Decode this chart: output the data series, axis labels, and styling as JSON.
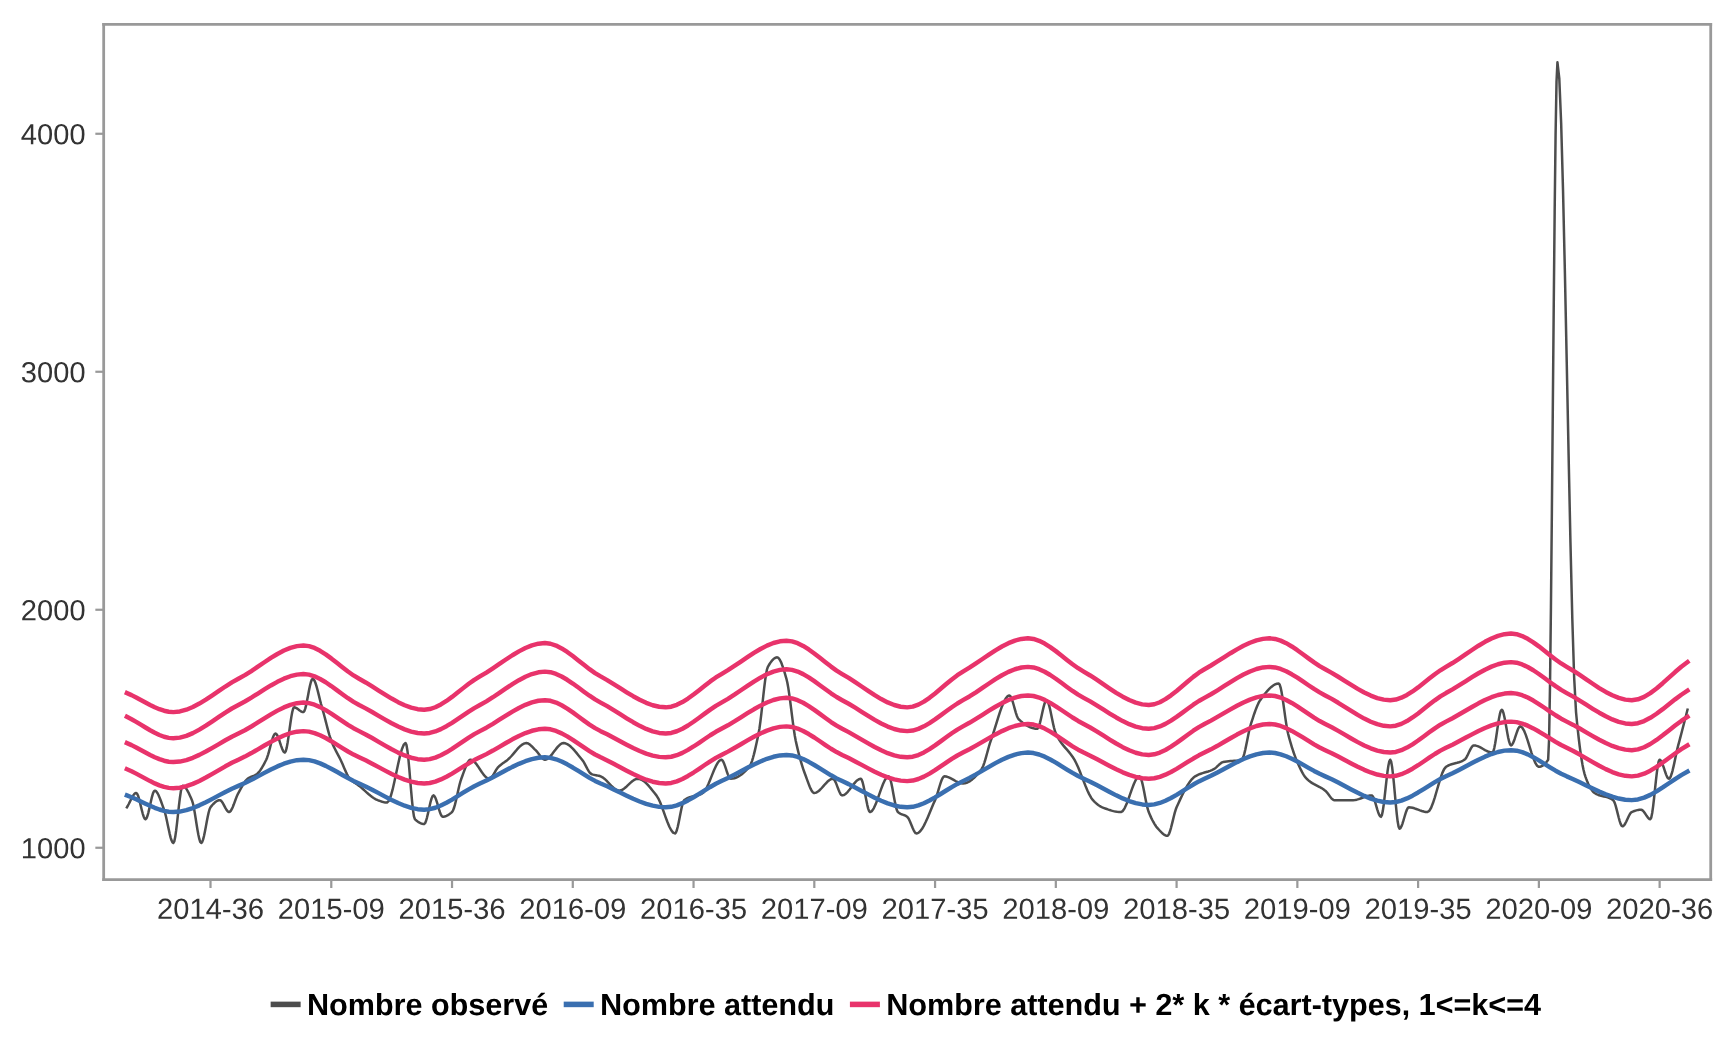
{
  "chart_data": {
    "type": "line",
    "categories": [
      null,
      null,
      null,
      null,
      null,
      null,
      null,
      null,
      null,
      null,
      "2014-36",
      null,
      null,
      null,
      null,
      null,
      null,
      null,
      null,
      null,
      null,
      null,
      null,
      "2015-09",
      null,
      null,
      null,
      null,
      null,
      null,
      null,
      null,
      null,
      null,
      null,
      null,
      "2015-36",
      null,
      null,
      null,
      null,
      null,
      null,
      null,
      null,
      null,
      null,
      null,
      null,
      "2016-09",
      null,
      null,
      null,
      null,
      null,
      null,
      null,
      null,
      null,
      null,
      null,
      null,
      "2016-35",
      null,
      null,
      null,
      null,
      null,
      null,
      null,
      null,
      null,
      null,
      null,
      null,
      "2017-09",
      null,
      null,
      null,
      null,
      null,
      null,
      null,
      null,
      null,
      null,
      null,
      null,
      "2017-35",
      null,
      null,
      null,
      null,
      null,
      null,
      null,
      null,
      null,
      null,
      null,
      null,
      "2018-09",
      null,
      null,
      null,
      null,
      null,
      null,
      null,
      null,
      null,
      null,
      null,
      null,
      "2018-35",
      null,
      null,
      null,
      null,
      null,
      null,
      null,
      null,
      null,
      null,
      null,
      null,
      "2019-09",
      null,
      null,
      null,
      null,
      null,
      null,
      null,
      null,
      null,
      null,
      null,
      null,
      "2019-35",
      null,
      null,
      null,
      null,
      null,
      null,
      null,
      null,
      null,
      null,
      null,
      null,
      "2020-09",
      null,
      null,
      null,
      null,
      null,
      null,
      null,
      null,
      null,
      null,
      null,
      null,
      "2020-36",
      null,
      null,
      null
    ],
    "ylim": [
      866,
      4460
    ],
    "yticks": [
      1000,
      2000,
      3000,
      4000
    ],
    "grid": false,
    "legend": "bottom",
    "series": [
      {
        "name": "Nombre observé",
        "color": "#4d4d4d",
        "values": [
          null,
          1170,
          1230,
          1120,
          1240,
          1160,
          1020,
          1260,
          1200,
          1020,
          1170,
          1200,
          1150,
          1230,
          1290,
          1310,
          1370,
          1480,
          1400,
          1590,
          1570,
          1710,
          1590,
          1450,
          1370,
          1290,
          1260,
          null,
          1200,
          1190,
          null,
          1440,
          1120,
          1100,
          1220,
          1130,
          1150,
          1290,
          1370,
          null,
          1290,
          1340,
          1370,
          null,
          1440,
          1410,
          1370,
          null,
          1440,
          null,
          1370,
          1310,
          1300,
          null,
          1240,
          null,
          1290,
          null,
          1220,
          null,
          1060,
          1200,
          null,
          1230,
          null,
          1370,
          1290,
          null,
          1340,
          1480,
          1760,
          1800,
          1710,
          1450,
          1310,
          1230,
          null,
          1290,
          1220,
          null,
          1290,
          1150,
          null,
          1300,
          1150,
          1130,
          1060,
          null,
          1200,
          1300,
          null,
          1270,
          null,
          1330,
          1450,
          null,
          1640,
          1540,
          null,
          1500,
          1620,
          1480,
          null,
          1370,
          null,
          1200,
          1170,
          null,
          1150,
          null,
          1300,
          1150,
          1080,
          1050,
          1170,
          null,
          1300,
          null,
          1330,
          1360,
          null,
          1370,
          1520,
          1620,
          null,
          1690,
          1480,
          1360,
          1290,
          null,
          1240,
          1200,
          null,
          1200,
          null,
          1220,
          1130,
          1370,
          1080,
          1170,
          null,
          1150,
          null,
          1340,
          null,
          1370,
          1430,
          null,
          1400,
          1580,
          1430,
          1510,
          null,
          1340,
          1370,
          4300,
          null,
          1570,
          1300,
          1230,
          null,
          1200,
          1090,
          1150,
          1160,
          1120,
          1370,
          1290,
          1430,
          1580
        ]
      },
      {
        "name": "Nombre attendu",
        "color": "#3a6fb0",
        "values": [
          null,
          1220,
          null,
          null,
          null,
          null,
          1150,
          null,
          null,
          null,
          null,
          null,
          null,
          1260,
          null,
          null,
          null,
          null,
          null,
          null,
          1370,
          null,
          null,
          null,
          null,
          null,
          1270,
          null,
          null,
          null,
          null,
          null,
          null,
          1160,
          null,
          null,
          null,
          null,
          null,
          1270,
          null,
          null,
          null,
          null,
          null,
          null,
          1380,
          null,
          null,
          null,
          null,
          null,
          1270,
          null,
          null,
          null,
          null,
          null,
          null,
          1170,
          null,
          null,
          null,
          null,
          null,
          1280,
          null,
          null,
          null,
          null,
          null,
          null,
          1390,
          null,
          null,
          null,
          null,
          null,
          1280,
          null,
          null,
          null,
          null,
          null,
          null,
          1170,
          null,
          null,
          null,
          null,
          null,
          1280,
          null,
          null,
          null,
          null,
          null,
          null,
          1400,
          null,
          null,
          null,
          null,
          null,
          1290,
          null,
          null,
          null,
          null,
          null,
          null,
          1180,
          null,
          null,
          null,
          null,
          null,
          1290,
          null,
          null,
          null,
          null,
          null,
          null,
          1400,
          null,
          null,
          null,
          null,
          null,
          1300,
          null,
          null,
          null,
          null,
          null,
          null,
          1190,
          null,
          null,
          null,
          null,
          null,
          1300,
          null,
          null,
          null,
          null,
          null,
          null,
          1410,
          null,
          null,
          null,
          null,
          null,
          1300,
          null,
          null,
          null,
          null,
          null,
          null,
          1200,
          null,
          null,
          null,
          null,
          null,
          1320
        ]
      },
      {
        "name": "Nombre attendu + 2* k * écart-types, 1<=k<=4",
        "color": "#e8336b",
        "values": [
          null,
          1330,
          null,
          null,
          null,
          null,
          1250,
          null,
          null,
          null,
          null,
          null,
          null,
          1370,
          null,
          null,
          null,
          null,
          null,
          null,
          1490,
          null,
          null,
          null,
          null,
          null,
          1380,
          null,
          null,
          null,
          null,
          null,
          null,
          1270,
          null,
          null,
          null,
          null,
          null,
          1380,
          null,
          null,
          null,
          null,
          null,
          null,
          1500,
          null,
          null,
          null,
          null,
          null,
          1380,
          null,
          null,
          null,
          null,
          null,
          null,
          1270,
          null,
          null,
          null,
          null,
          null,
          1390,
          null,
          null,
          null,
          null,
          null,
          null,
          1510,
          null,
          null,
          null,
          null,
          null,
          1390,
          null,
          null,
          null,
          null,
          null,
          null,
          1280,
          null,
          null,
          null,
          null,
          null,
          1400,
          null,
          null,
          null,
          null,
          null,
          null,
          1520,
          null,
          null,
          null,
          null,
          null,
          1400,
          null,
          null,
          null,
          null,
          null,
          null,
          1290,
          null,
          null,
          null,
          null,
          null,
          1400,
          null,
          null,
          null,
          null,
          null,
          null,
          1520,
          null,
          null,
          null,
          null,
          null,
          1410,
          null,
          null,
          null,
          null,
          null,
          null,
          1300,
          null,
          null,
          null,
          null,
          null,
          1420,
          null,
          null,
          null,
          null,
          null,
          null,
          1530,
          null,
          null,
          null,
          null,
          null,
          1420,
          null,
          null,
          null,
          null,
          null,
          null,
          1300,
          null,
          null,
          null,
          null,
          null,
          1430
        ]
      },
      {
        "color": "#e8336b",
        "values": [
          null,
          1440,
          null,
          null,
          null,
          null,
          1360,
          null,
          null,
          null,
          null,
          null,
          null,
          1480,
          null,
          null,
          null,
          null,
          null,
          null,
          1610,
          null,
          null,
          null,
          null,
          null,
          1490,
          null,
          null,
          null,
          null,
          null,
          null,
          1370,
          null,
          null,
          null,
          null,
          null,
          1490,
          null,
          null,
          null,
          null,
          null,
          null,
          1620,
          null,
          null,
          null,
          null,
          null,
          1490,
          null,
          null,
          null,
          null,
          null,
          null,
          1380,
          null,
          null,
          null,
          null,
          null,
          1500,
          null,
          null,
          null,
          null,
          null,
          null,
          1630,
          null,
          null,
          null,
          null,
          null,
          1500,
          null,
          null,
          null,
          null,
          null,
          null,
          1380,
          null,
          null,
          null,
          null,
          null,
          1510,
          null,
          null,
          null,
          null,
          null,
          null,
          1640,
          null,
          null,
          null,
          null,
          null,
          1520,
          null,
          null,
          null,
          null,
          null,
          null,
          1390,
          null,
          null,
          null,
          null,
          null,
          1520,
          null,
          null,
          null,
          null,
          null,
          null,
          1640,
          null,
          null,
          null,
          null,
          null,
          1520,
          null,
          null,
          null,
          null,
          null,
          null,
          1400,
          null,
          null,
          null,
          null,
          null,
          1530,
          null,
          null,
          null,
          null,
          null,
          null,
          1650,
          null,
          null,
          null,
          null,
          null,
          1530,
          null,
          null,
          null,
          null,
          null,
          null,
          1410,
          null,
          null,
          null,
          null,
          null,
          1550
        ]
      },
      {
        "color": "#e8336b",
        "values": [
          null,
          1550,
          null,
          null,
          null,
          null,
          1460,
          null,
          null,
          null,
          null,
          null,
          null,
          1600,
          null,
          null,
          null,
          null,
          null,
          null,
          1730,
          null,
          null,
          null,
          null,
          null,
          1600,
          null,
          null,
          null,
          null,
          null,
          null,
          1480,
          null,
          null,
          null,
          null,
          null,
          1600,
          null,
          null,
          null,
          null,
          null,
          null,
          1740,
          null,
          null,
          null,
          null,
          null,
          1610,
          null,
          null,
          null,
          null,
          null,
          null,
          1480,
          null,
          null,
          null,
          null,
          null,
          1610,
          null,
          null,
          null,
          null,
          null,
          null,
          1750,
          null,
          null,
          null,
          null,
          null,
          1620,
          null,
          null,
          null,
          null,
          null,
          null,
          1490,
          null,
          null,
          null,
          null,
          null,
          1620,
          null,
          null,
          null,
          null,
          null,
          null,
          1760,
          null,
          null,
          null,
          null,
          null,
          1630,
          null,
          null,
          null,
          null,
          null,
          null,
          1500,
          null,
          null,
          null,
          null,
          null,
          1630,
          null,
          null,
          null,
          null,
          null,
          null,
          1760,
          null,
          null,
          null,
          null,
          null,
          1640,
          null,
          null,
          null,
          null,
          null,
          null,
          1510,
          null,
          null,
          null,
          null,
          null,
          1650,
          null,
          null,
          null,
          null,
          null,
          null,
          1780,
          null,
          null,
          null,
          null,
          null,
          1650,
          null,
          null,
          null,
          null,
          null,
          null,
          1520,
          null,
          null,
          null,
          null,
          null,
          1660
        ]
      },
      {
        "color": "#e8336b",
        "values": [
          null,
          1650,
          null,
          null,
          null,
          null,
          1570,
          null,
          null,
          null,
          null,
          null,
          null,
          1710,
          null,
          null,
          null,
          null,
          null,
          null,
          1850,
          null,
          null,
          null,
          null,
          null,
          1710,
          null,
          null,
          null,
          null,
          null,
          null,
          1580,
          null,
          null,
          null,
          null,
          null,
          1720,
          null,
          null,
          null,
          null,
          null,
          null,
          1860,
          null,
          null,
          null,
          null,
          null,
          1720,
          null,
          null,
          null,
          null,
          null,
          null,
          1590,
          null,
          null,
          null,
          null,
          null,
          1730,
          null,
          null,
          null,
          null,
          null,
          null,
          1870,
          null,
          null,
          null,
          null,
          null,
          1730,
          null,
          null,
          null,
          null,
          null,
          null,
          1590,
          null,
          null,
          null,
          null,
          null,
          1740,
          null,
          null,
          null,
          null,
          null,
          null,
          1880,
          null,
          null,
          null,
          null,
          null,
          1740,
          null,
          null,
          null,
          null,
          null,
          null,
          1600,
          null,
          null,
          null,
          null,
          null,
          1750,
          null,
          null,
          null,
          null,
          null,
          null,
          1880,
          null,
          null,
          null,
          null,
          null,
          1750,
          null,
          null,
          null,
          null,
          null,
          null,
          1620,
          null,
          null,
          null,
          null,
          null,
          1760,
          null,
          null,
          null,
          null,
          null,
          null,
          1900,
          null,
          null,
          null,
          null,
          null,
          1760,
          null,
          null,
          null,
          null,
          null,
          null,
          1620,
          null,
          null,
          null,
          null,
          null,
          1780
        ]
      }
    ]
  }
}
